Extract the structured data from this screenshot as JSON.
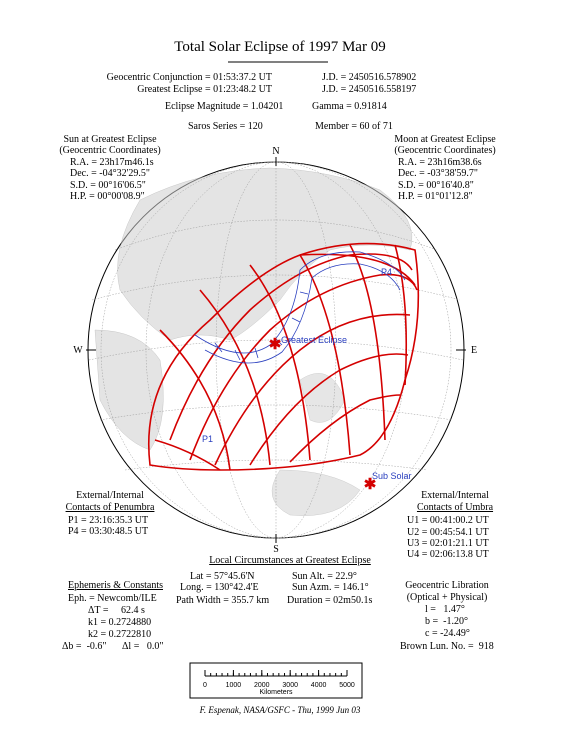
{
  "header": {
    "title": "Total Solar Eclipse of 1997 Mar 09",
    "conjunction": "Geocentric Conjunction = 01:53:37.2 UT",
    "conjunction_jd": "J.D. = 2450516.578902",
    "greatest": "Greatest Eclipse = 01:23:48.2 UT",
    "greatest_jd": "J.D. = 2450516.558197",
    "magnitude": "Eclipse Magnitude = 1.04201",
    "gamma": "Gamma = 0.91814",
    "saros": "Saros Series = 120",
    "member": "Member = 60 of 71"
  },
  "sun": {
    "heading": [
      "Sun at Greatest Eclipse",
      "(Geocentric Coordinates)"
    ],
    "rows": [
      "R.A. = 23h17m46.1s",
      "Dec. = -04°32'29.5\"",
      "S.D. = 00°16'06.5\"",
      "H.P. = 00°00'08.9\""
    ]
  },
  "moon": {
    "heading": [
      "Moon at Greatest Eclipse",
      "(Geocentric Coordinates)"
    ],
    "rows": [
      "R.A. = 23h16m38.6s",
      "Dec. = -03°38'59.7\"",
      "S.D. = 00°16'40.8\"",
      "H.P. = 01°01'12.8\""
    ]
  },
  "map": {
    "compass": {
      "n": "N",
      "s": "S",
      "e": "E",
      "w": "W"
    },
    "labels": {
      "p4": "P4",
      "greatest": "Greatest Eclipse",
      "p1": "P1",
      "sub_solar": "Sub Solar"
    }
  },
  "penumbra": {
    "heading": [
      "External/Internal",
      "Contacts of Penumbra"
    ],
    "rows": [
      "P1 = 23:16:35.3 UT",
      "P4 = 03:30:48.5 UT"
    ]
  },
  "umbra": {
    "heading": [
      "External/Internal",
      "Contacts of Umbra"
    ],
    "rows": [
      "U1 = 00:41:00.2 UT",
      "U2 = 00:45:54.1 UT",
      "U3 = 02:01:21.1 UT",
      "U4 = 02:06:13.8 UT"
    ]
  },
  "local": {
    "heading": "Local Circumstances at Greatest Eclipse",
    "rows": [
      [
        "Lat = 57°45.6'N",
        "Sun Alt. = 22.9°"
      ],
      [
        "Long. = 130°42.4'E",
        "Sun Azm. = 146.1°"
      ],
      [
        "Path Width = 355.7 km",
        "Duration = 02m50.1s"
      ]
    ]
  },
  "ephemeris": {
    "heading": "Ephemeris & Constants",
    "eph": "Eph. = Newcomb/ILE",
    "delta_t": "ΔT =     62.4 s",
    "k1": "k1 = 0.2724880",
    "k2": "k2 = 0.2722810",
    "db": "Δb =  -0.6\"",
    "dl": "Δl =   0.0\""
  },
  "libration": {
    "heading": [
      "Geocentric Libration",
      "(Optical + Physical)"
    ],
    "rows": [
      "l =   1.47°",
      "b =  -1.20°",
      "c = -24.49°"
    ],
    "brown": "Brown Lun. No. =  918"
  },
  "scale": {
    "ticks": [
      0,
      1000,
      2000,
      3000,
      4000,
      5000
    ],
    "unit": "Kilometers"
  },
  "footer": "F. Espenak, NASA/GSFC - Thu, 1999 Jun 03"
}
